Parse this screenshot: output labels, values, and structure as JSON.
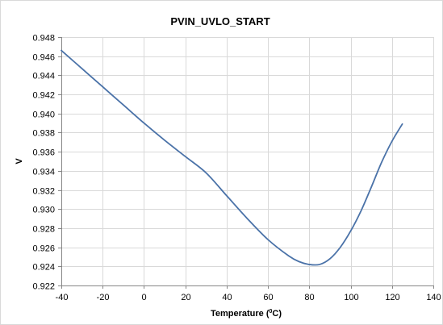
{
  "chart_data": {
    "type": "line",
    "title": "PVIN_UVLO_START",
    "xlabel_prefix": "Temperature (",
    "xlabel_sup": "0",
    "xlabel_suffix": "C)",
    "ylabel": "V",
    "xlim": [
      -40,
      140
    ],
    "ylim": [
      0.922,
      0.948
    ],
    "xticks": [
      -40,
      -20,
      0,
      20,
      40,
      60,
      80,
      100,
      120,
      140
    ],
    "xtick_labels": [
      "-40",
      "-20",
      "0",
      "20",
      "40",
      "60",
      "80",
      "100",
      "120",
      "140"
    ],
    "yticks": [
      0.922,
      0.924,
      0.926,
      0.928,
      0.93,
      0.932,
      0.934,
      0.936,
      0.938,
      0.94,
      0.942,
      0.944,
      0.946,
      0.948
    ],
    "ytick_labels": [
      "0.922",
      "0.924",
      "0.926",
      "0.928",
      "0.930",
      "0.932",
      "0.934",
      "0.936",
      "0.938",
      "0.940",
      "0.942",
      "0.944",
      "0.946",
      "0.948"
    ],
    "grid": true,
    "legend": "none",
    "line_color": "#4a72a8",
    "series": [
      {
        "x": [
          -40,
          -30,
          -20,
          -10,
          0,
          10,
          20,
          30,
          40,
          50,
          60,
          70,
          75,
          80,
          85,
          90,
          95,
          100,
          105,
          110,
          115,
          120,
          125
        ],
        "y": [
          0.9466,
          0.9447,
          0.9428,
          0.9409,
          0.939,
          0.9372,
          0.9355,
          0.9338,
          0.9314,
          0.929,
          0.9268,
          0.9251,
          0.9245,
          0.9242,
          0.9242,
          0.9248,
          0.926,
          0.9277,
          0.9298,
          0.9323,
          0.9349,
          0.9371,
          0.9389
        ]
      }
    ]
  }
}
